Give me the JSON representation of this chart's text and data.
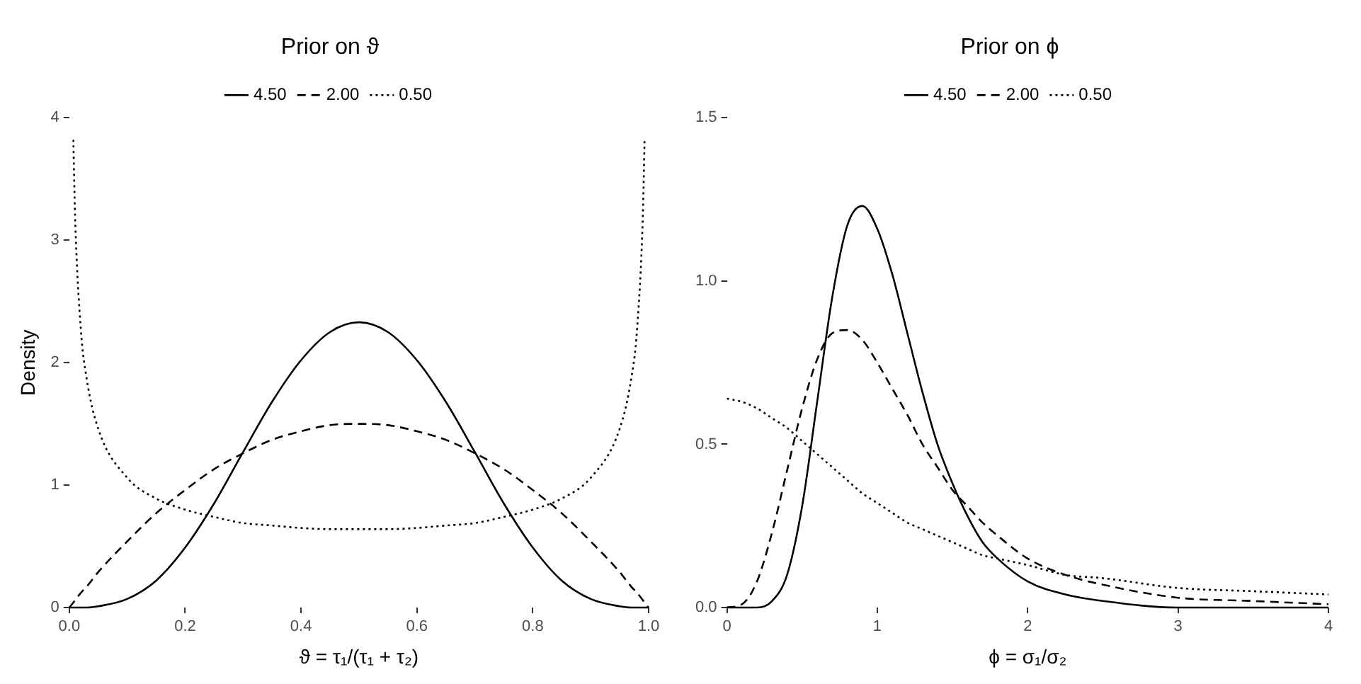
{
  "chart_data": [
    {
      "type": "line",
      "title": "Prior on ϑ",
      "xlabel": "ϑ = τ₁/(τ₁ + τ₂)",
      "ylabel": "Density",
      "marker": "none",
      "grid": false,
      "legend": "top",
      "x": [
        0,
        0.007,
        0.01,
        0.02,
        0.03,
        0.05,
        0.1,
        0.15,
        0.2,
        0.25,
        0.3,
        0.35,
        0.4,
        0.45,
        0.5,
        0.55,
        0.6,
        0.65,
        0.7,
        0.75,
        0.8,
        0.85,
        0.9,
        0.95,
        0.97,
        0.98,
        0.99,
        0.993,
        1
      ],
      "xlim": [
        0,
        1
      ],
      "xticks": [
        {
          "value": 0,
          "label": "0.0"
        },
        {
          "value": 0.2,
          "label": "0.2"
        },
        {
          "value": 0.4,
          "label": "0.4"
        },
        {
          "value": 0.6,
          "label": "0.6"
        },
        {
          "value": 0.8,
          "label": "0.8"
        },
        {
          "value": 1,
          "label": "1.0"
        }
      ],
      "ylim": [
        0,
        4
      ],
      "yticks": [
        0,
        1,
        2,
        3,
        4
      ],
      "series": [
        {
          "name": "4.50",
          "color": "#000000",
          "line_style": "solid",
          "values": [
            0,
            0,
            0,
            0,
            0,
            0.01,
            0.07,
            0.22,
            0.49,
            0.85,
            1.27,
            1.68,
            2.02,
            2.25,
            2.33,
            2.25,
            2.02,
            1.68,
            1.27,
            0.85,
            0.49,
            0.22,
            0.07,
            0.01,
            0,
            0,
            0,
            0,
            0
          ]
        },
        {
          "name": "2.00",
          "color": "#000000",
          "line_style": "dashed",
          "values": [
            0,
            0.04,
            0.06,
            0.12,
            0.17,
            0.29,
            0.54,
            0.77,
            0.96,
            1.13,
            1.26,
            1.37,
            1.44,
            1.49,
            1.5,
            1.49,
            1.44,
            1.37,
            1.26,
            1.13,
            0.96,
            0.77,
            0.54,
            0.29,
            0.17,
            0.12,
            0.06,
            0.04,
            0
          ]
        },
        {
          "name": "0.50",
          "color": "#000000",
          "line_style": "dotted",
          "values": [
            null,
            3.82,
            3.2,
            2.27,
            1.87,
            1.46,
            1.06,
            0.89,
            0.8,
            0.74,
            0.69,
            0.67,
            0.65,
            0.64,
            0.64,
            0.64,
            0.65,
            0.67,
            0.69,
            0.74,
            0.8,
            0.89,
            1.06,
            1.46,
            1.87,
            2.27,
            3.2,
            3.82,
            null
          ]
        }
      ]
    },
    {
      "type": "line",
      "title": "Prior on ϕ",
      "xlabel": "ϕ = σ₁/σ₂",
      "marker": "none",
      "grid": false,
      "legend": "top",
      "x": [
        0,
        0.1,
        0.2,
        0.3,
        0.4,
        0.5,
        0.6,
        0.7,
        0.8,
        0.9,
        1,
        1.1,
        1.2,
        1.3,
        1.4,
        1.5,
        1.6,
        1.7,
        1.8,
        2,
        2.25,
        2.5,
        3,
        3.5,
        4
      ],
      "xlim": [
        0,
        4
      ],
      "xticks": [
        0,
        1,
        2,
        3,
        4
      ],
      "ylim": [
        0,
        1.5
      ],
      "yticks": [
        {
          "value": 0,
          "label": "0.0"
        },
        {
          "value": 0.5,
          "label": "0.5"
        },
        {
          "value": 1,
          "label": "1.0"
        },
        {
          "value": 1.5,
          "label": "1.5"
        }
      ],
      "series": [
        {
          "name": "4.50",
          "color": "#000000",
          "line_style": "solid",
          "values": [
            0,
            0,
            0,
            0.02,
            0.1,
            0.31,
            0.63,
            0.95,
            1.17,
            1.23,
            1.16,
            1.02,
            0.84,
            0.66,
            0.5,
            0.38,
            0.28,
            0.2,
            0.15,
            0.08,
            0.04,
            0.02,
            0,
            0,
            0
          ]
        },
        {
          "name": "2.00",
          "color": "#000000",
          "line_style": "dashed",
          "values": [
            0,
            0.01,
            0.08,
            0.23,
            0.42,
            0.61,
            0.76,
            0.84,
            0.85,
            0.82,
            0.75,
            0.67,
            0.59,
            0.5,
            0.43,
            0.36,
            0.31,
            0.26,
            0.22,
            0.15,
            0.1,
            0.07,
            0.03,
            0.02,
            0.01
          ]
        },
        {
          "name": "0.50",
          "color": "#000000",
          "line_style": "dotted",
          "values": [
            0.64,
            0.63,
            0.61,
            0.58,
            0.55,
            0.51,
            0.47,
            0.43,
            0.39,
            0.35,
            0.32,
            0.29,
            0.26,
            0.24,
            0.22,
            0.2,
            0.18,
            0.16,
            0.15,
            0.13,
            0.1,
            0.09,
            0.06,
            0.05,
            0.04
          ]
        }
      ]
    }
  ]
}
